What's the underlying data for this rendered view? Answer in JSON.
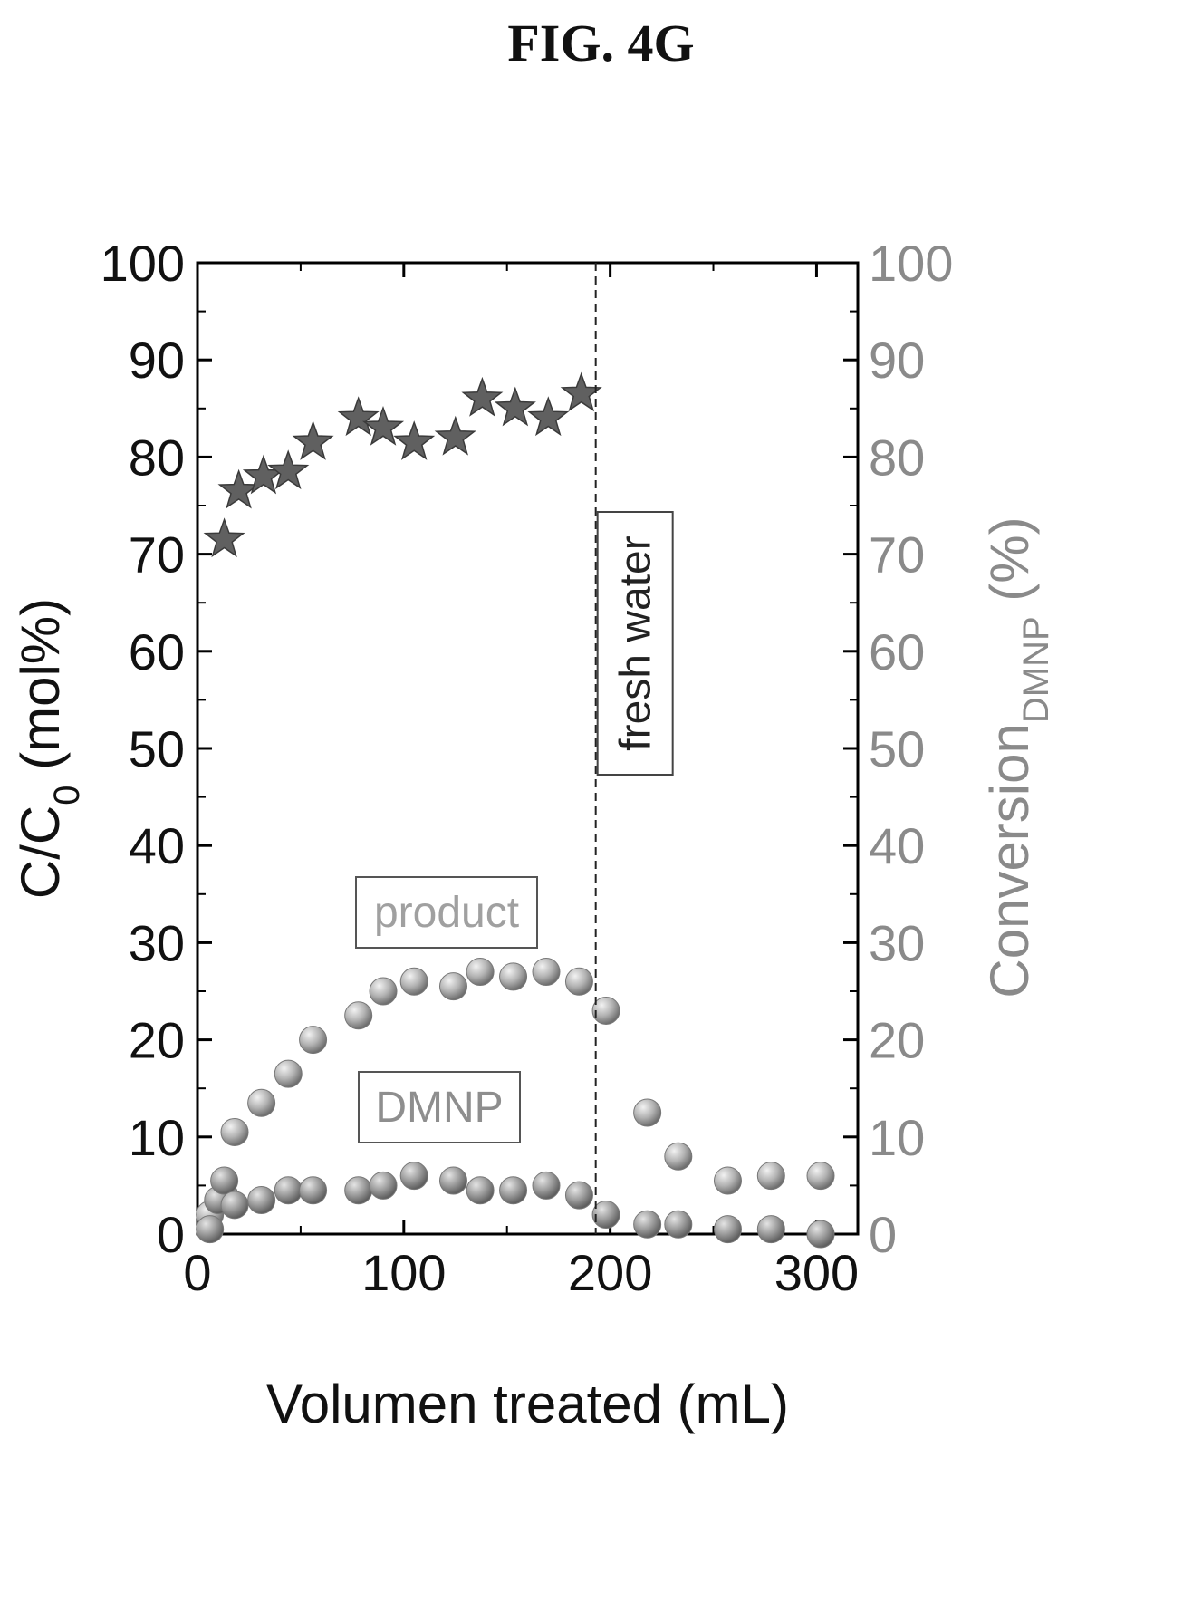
{
  "figure_label": "FIG. 4G",
  "chart_data": {
    "type": "scatter",
    "xlabel": "Volumen treated (mL)",
    "ylabel_left": {
      "main": "C/C",
      "sub": "0",
      "tail": " (mol%)"
    },
    "ylabel_right": {
      "main": "Conversion",
      "sub": "DMNP",
      "tail": " (%)"
    },
    "xlim": [
      0,
      320
    ],
    "ylim": [
      0,
      100
    ],
    "x_ticks": [
      0,
      100,
      200,
      300
    ],
    "y_ticks": [
      0,
      10,
      20,
      30,
      40,
      50,
      60,
      70,
      80,
      90,
      100
    ],
    "divider_x": 193,
    "annotations": {
      "fresh_water": "fresh water",
      "product": "product",
      "dmnp": "DMNP"
    },
    "colors": {
      "conversion": "#606060",
      "product": "#a8a8a8",
      "dmnp": "#9a9a9a",
      "axis": "#000000",
      "right_axis_text": "#8a8a8a"
    },
    "series": [
      {
        "name": "Conversion",
        "axis": "right",
        "marker": "star",
        "points": [
          [
            13,
            71.5
          ],
          [
            20,
            76.5
          ],
          [
            32,
            78
          ],
          [
            44,
            78.5
          ],
          [
            56,
            81.5
          ],
          [
            78,
            84
          ],
          [
            90,
            83
          ],
          [
            105,
            81.5
          ],
          [
            125,
            82
          ],
          [
            138,
            86
          ],
          [
            154,
            85
          ],
          [
            170,
            84
          ],
          [
            186,
            86.5
          ]
        ]
      },
      {
        "name": "product",
        "axis": "left",
        "marker": "sphere",
        "points": [
          [
            6,
            2
          ],
          [
            13,
            4
          ],
          [
            18,
            10.5
          ],
          [
            31,
            13.5
          ],
          [
            44,
            16.5
          ],
          [
            56,
            20
          ],
          [
            78,
            22.5
          ],
          [
            90,
            25
          ],
          [
            105,
            26
          ],
          [
            124,
            25.5
          ],
          [
            137,
            27
          ],
          [
            153,
            26.5
          ],
          [
            169,
            27
          ],
          [
            185,
            26
          ],
          [
            198,
            23
          ],
          [
            218,
            12.5
          ],
          [
            233,
            8
          ],
          [
            257,
            5.5
          ],
          [
            278,
            6
          ],
          [
            302,
            6
          ]
        ]
      },
      {
        "name": "DMNP",
        "axis": "left",
        "marker": "sphere",
        "points": [
          [
            6,
            0.5
          ],
          [
            10,
            3.5
          ],
          [
            13,
            5.5
          ],
          [
            18,
            3
          ],
          [
            31,
            3.5
          ],
          [
            44,
            4.5
          ],
          [
            56,
            4.5
          ],
          [
            78,
            4.5
          ],
          [
            90,
            5
          ],
          [
            105,
            6
          ],
          [
            124,
            5.5
          ],
          [
            137,
            4.5
          ],
          [
            153,
            4.5
          ],
          [
            169,
            5
          ],
          [
            185,
            4
          ],
          [
            198,
            2
          ],
          [
            218,
            1
          ],
          [
            233,
            1
          ],
          [
            257,
            0.5
          ],
          [
            278,
            0.5
          ],
          [
            302,
            0
          ]
        ]
      }
    ]
  }
}
